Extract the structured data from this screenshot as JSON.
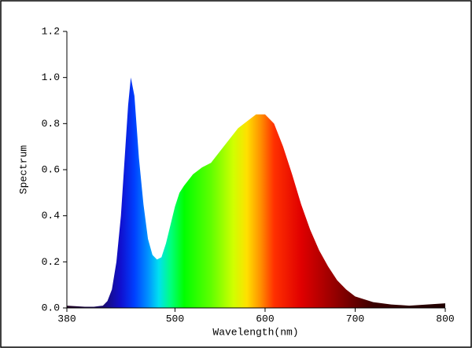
{
  "chart_data": {
    "type": "area",
    "xlabel": "Wavelength(nm)",
    "ylabel": "Spectrum",
    "x": [
      380,
      400,
      410,
      420,
      425,
      430,
      435,
      440,
      445,
      448,
      451,
      455,
      460,
      465,
      470,
      475,
      480,
      485,
      490,
      495,
      500,
      505,
      510,
      520,
      530,
      540,
      550,
      560,
      570,
      580,
      590,
      600,
      610,
      620,
      630,
      640,
      650,
      660,
      670,
      680,
      690,
      700,
      720,
      740,
      760,
      780,
      800
    ],
    "values": [
      0.01,
      0.005,
      0.005,
      0.01,
      0.03,
      0.08,
      0.2,
      0.4,
      0.7,
      0.88,
      1.0,
      0.92,
      0.65,
      0.45,
      0.3,
      0.23,
      0.21,
      0.22,
      0.28,
      0.36,
      0.44,
      0.5,
      0.53,
      0.58,
      0.61,
      0.63,
      0.68,
      0.73,
      0.78,
      0.81,
      0.84,
      0.84,
      0.8,
      0.7,
      0.58,
      0.45,
      0.34,
      0.25,
      0.18,
      0.12,
      0.08,
      0.05,
      0.025,
      0.015,
      0.01,
      0.015,
      0.02
    ],
    "xlim": [
      380,
      800
    ],
    "xticks": [
      380,
      500,
      600,
      700,
      800
    ],
    "ylim": [
      0,
      1.2
    ],
    "yticks": [
      {
        "value": 0,
        "label": "0.0"
      },
      0.2,
      0.4,
      0.6,
      0.8,
      {
        "value": 1,
        "label": "1.0"
      },
      1.2
    ],
    "grid": false
  }
}
